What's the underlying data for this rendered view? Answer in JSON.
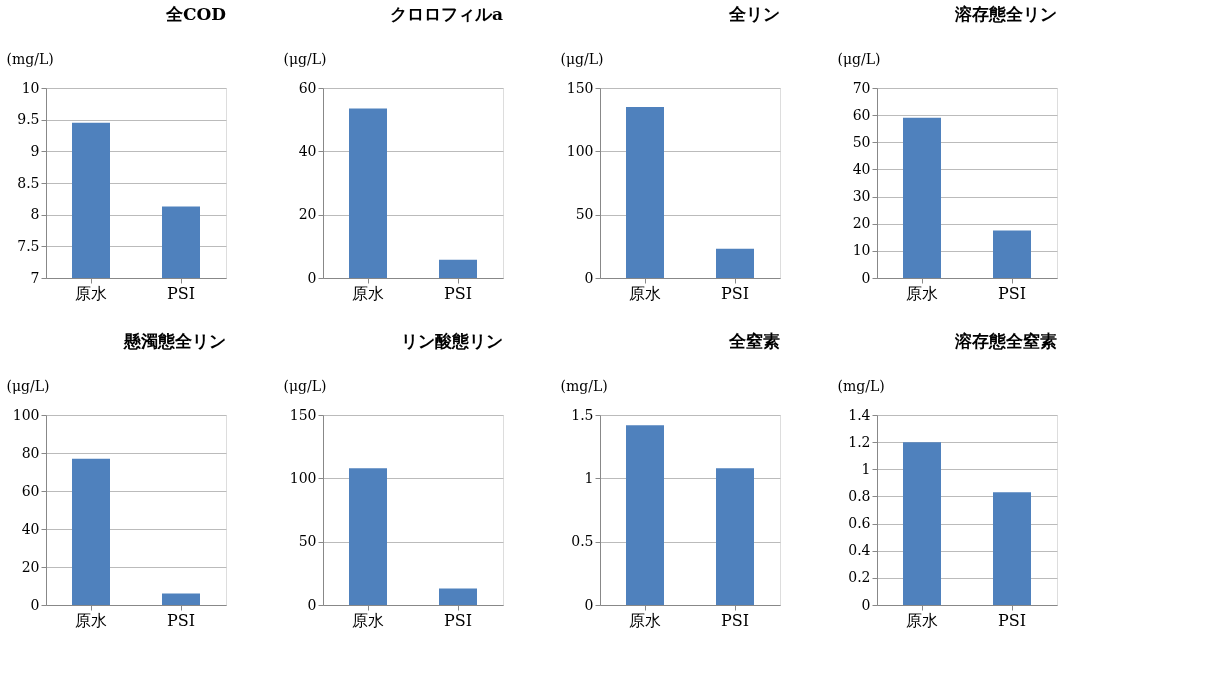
{
  "chart_data": [
    {
      "type": "bar",
      "title": "全COD",
      "ylabel": "(mg/L)",
      "categories": [
        "原水",
        "PSI"
      ],
      "values": [
        9.45,
        8.13
      ],
      "color": "#4f81bd",
      "ylim": [
        7,
        10
      ],
      "yticks": [
        7,
        7.5,
        8,
        8.5,
        9,
        9.5,
        10
      ],
      "grid": "y"
    },
    {
      "type": "bar",
      "title": "クロロフィルa",
      "ylabel": "(μg/L)",
      "categories": [
        "原水",
        "PSI"
      ],
      "values": [
        53.5,
        5.8
      ],
      "color": "#4f81bd",
      "ylim": [
        0,
        60
      ],
      "yticks": [
        0,
        20,
        40,
        60
      ],
      "grid": "y"
    },
    {
      "type": "bar",
      "title": "全リン",
      "ylabel": "(μg/L)",
      "categories": [
        "原水",
        "PSI"
      ],
      "values": [
        135,
        23
      ],
      "color": "#4f81bd",
      "ylim": [
        0,
        150
      ],
      "yticks": [
        0,
        50,
        100,
        150
      ],
      "grid": "y"
    },
    {
      "type": "bar",
      "title": "溶存態全リン",
      "ylabel": "(μg/L)",
      "categories": [
        "原水",
        "PSI"
      ],
      "values": [
        59,
        17.5
      ],
      "color": "#4f81bd",
      "ylim": [
        0,
        70
      ],
      "yticks": [
        0,
        10,
        20,
        30,
        40,
        50,
        60,
        70
      ],
      "grid": "y"
    },
    {
      "type": "bar",
      "title": "懸濁態全リン",
      "ylabel": "(μg/L)",
      "categories": [
        "原水",
        "PSI"
      ],
      "values": [
        77,
        6
      ],
      "color": "#4f81bd",
      "ylim": [
        0,
        100
      ],
      "yticks": [
        0,
        20,
        40,
        60,
        80,
        100
      ],
      "grid": "y"
    },
    {
      "type": "bar",
      "title": "リン酸態リン",
      "ylabel": "(μg/L)",
      "categories": [
        "原水",
        "PSI"
      ],
      "values": [
        108,
        13
      ],
      "color": "#4f81bd",
      "ylim": [
        0,
        150
      ],
      "yticks": [
        0,
        50,
        100,
        150
      ],
      "grid": "y"
    },
    {
      "type": "bar",
      "title": "全窒素",
      "ylabel": "(mg/L)",
      "categories": [
        "原水",
        "PSI"
      ],
      "values": [
        1.42,
        1.08
      ],
      "color": "#4f81bd",
      "ylim": [
        0,
        1.5
      ],
      "yticks": [
        0,
        0.5,
        1,
        1.5
      ],
      "grid": "y"
    },
    {
      "type": "bar",
      "title": "溶存態全窒素",
      "ylabel": "(mg/L)",
      "categories": [
        "原水",
        "PSI"
      ],
      "values": [
        1.2,
        0.83
      ],
      "color": "#4f81bd",
      "ylim": [
        0,
        1.4
      ],
      "yticks": [
        0,
        0.2,
        0.4,
        0.6,
        0.8,
        1,
        1.2,
        1.4
      ],
      "grid": "y"
    }
  ]
}
